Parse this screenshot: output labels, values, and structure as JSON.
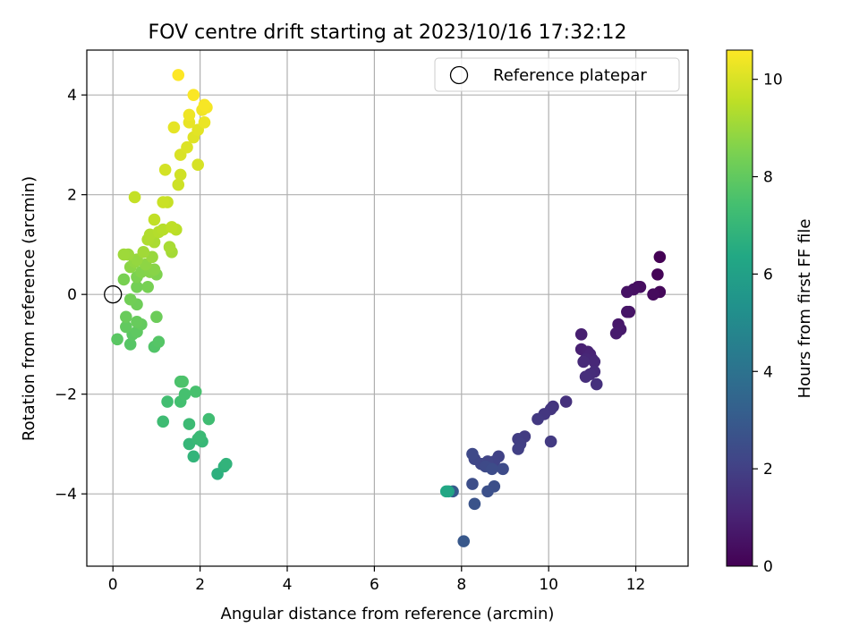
{
  "chart_data": {
    "type": "scatter",
    "title": "FOV centre drift starting at 2023/10/16 17:32:12",
    "xlabel": "Angular distance from reference (arcmin)",
    "ylabel": "Rotation from reference (arcmin)",
    "xlim": [
      -0.6,
      13.2
    ],
    "ylim": [
      -5.45,
      4.9
    ],
    "x_ticks": [
      0,
      2,
      4,
      6,
      8,
      10,
      12
    ],
    "y_ticks": [
      -4,
      -2,
      0,
      2,
      4
    ],
    "grid": true,
    "legend": {
      "position": "top-right",
      "entries": [
        "Reference platepar"
      ]
    },
    "reference_point": {
      "x": 0,
      "y": 0
    },
    "colormap": "viridis",
    "colorbar": {
      "label": "Hours from first FF file",
      "range": [
        0,
        10.6
      ],
      "ticks": [
        0,
        2,
        4,
        6,
        8,
        10
      ]
    },
    "series": [
      {
        "points": [
          {
            "x": 12.55,
            "y": 0.75,
            "c": 0.0
          },
          {
            "x": 12.5,
            "y": 0.4,
            "c": 0.1
          },
          {
            "x": 12.55,
            "y": 0.05,
            "c": 0.2
          },
          {
            "x": 12.4,
            "y": 0.0,
            "c": 0.3
          },
          {
            "x": 12.05,
            "y": 0.15,
            "c": 0.35
          },
          {
            "x": 12.1,
            "y": 0.15,
            "c": 0.4
          },
          {
            "x": 11.95,
            "y": 0.1,
            "c": 0.45
          },
          {
            "x": 11.8,
            "y": 0.05,
            "c": 0.5
          },
          {
            "x": 11.85,
            "y": -0.35,
            "c": 0.55
          },
          {
            "x": 11.8,
            "y": -0.35,
            "c": 0.6
          },
          {
            "x": 11.6,
            "y": -0.6,
            "c": 0.7
          },
          {
            "x": 11.65,
            "y": -0.7,
            "c": 0.75
          },
          {
            "x": 11.55,
            "y": -0.78,
            "c": 0.8
          },
          {
            "x": 10.75,
            "y": -0.8,
            "c": 0.9
          },
          {
            "x": 10.75,
            "y": -1.1,
            "c": 0.95
          },
          {
            "x": 10.9,
            "y": -1.15,
            "c": 1.0
          },
          {
            "x": 10.95,
            "y": -1.2,
            "c": 1.05
          },
          {
            "x": 11.0,
            "y": -1.3,
            "c": 1.1
          },
          {
            "x": 10.85,
            "y": -1.3,
            "c": 1.15
          },
          {
            "x": 11.05,
            "y": -1.35,
            "c": 1.2
          },
          {
            "x": 10.8,
            "y": -1.35,
            "c": 1.25
          },
          {
            "x": 11.05,
            "y": -1.55,
            "c": 1.3
          },
          {
            "x": 10.95,
            "y": -1.6,
            "c": 1.35
          },
          {
            "x": 10.85,
            "y": -1.65,
            "c": 1.4
          },
          {
            "x": 11.1,
            "y": -1.8,
            "c": 1.45
          },
          {
            "x": 10.4,
            "y": -2.15,
            "c": 1.5
          },
          {
            "x": 10.1,
            "y": -2.25,
            "c": 1.6
          },
          {
            "x": 10.05,
            "y": -2.3,
            "c": 1.65
          },
          {
            "x": 9.9,
            "y": -2.4,
            "c": 1.7
          },
          {
            "x": 9.75,
            "y": -2.5,
            "c": 1.75
          },
          {
            "x": 10.05,
            "y": -2.95,
            "c": 1.8
          },
          {
            "x": 9.45,
            "y": -2.85,
            "c": 1.85
          },
          {
            "x": 9.3,
            "y": -2.9,
            "c": 1.9
          },
          {
            "x": 9.35,
            "y": -3.0,
            "c": 1.95
          },
          {
            "x": 9.3,
            "y": -3.1,
            "c": 2.0
          },
          {
            "x": 8.85,
            "y": -3.25,
            "c": 2.05
          },
          {
            "x": 8.75,
            "y": -3.35,
            "c": 2.1
          },
          {
            "x": 8.6,
            "y": -3.35,
            "c": 2.15
          },
          {
            "x": 8.45,
            "y": -3.4,
            "c": 2.2
          },
          {
            "x": 8.3,
            "y": -3.3,
            "c": 2.25
          },
          {
            "x": 8.25,
            "y": -3.2,
            "c": 2.3
          },
          {
            "x": 8.55,
            "y": -3.45,
            "c": 2.35
          },
          {
            "x": 8.95,
            "y": -3.5,
            "c": 2.4
          },
          {
            "x": 8.7,
            "y": -3.5,
            "c": 2.45
          },
          {
            "x": 8.25,
            "y": -3.8,
            "c": 2.5
          },
          {
            "x": 8.75,
            "y": -3.85,
            "c": 2.55
          },
          {
            "x": 8.6,
            "y": -3.95,
            "c": 2.6
          },
          {
            "x": 8.3,
            "y": -4.2,
            "c": 2.7
          },
          {
            "x": 8.05,
            "y": -4.95,
            "c": 2.9
          },
          {
            "x": 7.8,
            "y": -3.95,
            "c": 3.0
          },
          {
            "x": 7.7,
            "y": -3.95,
            "c": 6.1
          },
          {
            "x": 7.65,
            "y": -3.95,
            "c": 6.3
          },
          {
            "x": 2.4,
            "y": -3.6,
            "c": 6.7
          },
          {
            "x": 2.55,
            "y": -3.45,
            "c": 6.8
          },
          {
            "x": 2.6,
            "y": -3.4,
            "c": 6.85
          },
          {
            "x": 1.85,
            "y": -3.25,
            "c": 6.9
          },
          {
            "x": 1.75,
            "y": -3.0,
            "c": 7.0
          },
          {
            "x": 2.05,
            "y": -2.95,
            "c": 7.05
          },
          {
            "x": 1.95,
            "y": -2.9,
            "c": 7.1
          },
          {
            "x": 2.0,
            "y": -2.85,
            "c": 7.15
          },
          {
            "x": 1.75,
            "y": -2.6,
            "c": 7.2
          },
          {
            "x": 1.15,
            "y": -2.55,
            "c": 7.25
          },
          {
            "x": 2.2,
            "y": -2.5,
            "c": 7.3
          },
          {
            "x": 1.25,
            "y": -2.15,
            "c": 7.35
          },
          {
            "x": 1.55,
            "y": -2.15,
            "c": 7.4
          },
          {
            "x": 1.65,
            "y": -2.0,
            "c": 7.45
          },
          {
            "x": 1.9,
            "y": -1.95,
            "c": 7.5
          },
          {
            "x": 1.55,
            "y": -1.75,
            "c": 7.55
          },
          {
            "x": 1.6,
            "y": -1.75,
            "c": 7.6
          },
          {
            "x": 0.95,
            "y": -1.05,
            "c": 7.7
          },
          {
            "x": 1.05,
            "y": -0.95,
            "c": 7.75
          },
          {
            "x": 0.4,
            "y": -1.0,
            "c": 7.8
          },
          {
            "x": 0.1,
            "y": -0.9,
            "c": 7.85
          },
          {
            "x": 0.45,
            "y": -0.8,
            "c": 7.9
          },
          {
            "x": 0.55,
            "y": -0.75,
            "c": 7.95
          },
          {
            "x": 0.3,
            "y": -0.65,
            "c": 8.0
          },
          {
            "x": 0.65,
            "y": -0.6,
            "c": 8.05
          },
          {
            "x": 0.55,
            "y": -0.55,
            "c": 8.1
          },
          {
            "x": 0.3,
            "y": -0.45,
            "c": 8.15
          },
          {
            "x": 1.0,
            "y": -0.45,
            "c": 8.2
          },
          {
            "x": 0.55,
            "y": -0.2,
            "c": 8.25
          },
          {
            "x": 0.4,
            "y": -0.1,
            "c": 8.3
          },
          {
            "x": 0.55,
            "y": 0.15,
            "c": 8.35
          },
          {
            "x": 0.8,
            "y": 0.15,
            "c": 8.4
          },
          {
            "x": 0.25,
            "y": 0.3,
            "c": 8.45
          },
          {
            "x": 0.55,
            "y": 0.35,
            "c": 8.5
          },
          {
            "x": 1.0,
            "y": 0.4,
            "c": 8.55
          },
          {
            "x": 0.65,
            "y": 0.45,
            "c": 8.6
          },
          {
            "x": 0.85,
            "y": 0.45,
            "c": 8.65
          },
          {
            "x": 0.95,
            "y": 0.5,
            "c": 8.7
          },
          {
            "x": 0.4,
            "y": 0.55,
            "c": 8.75
          },
          {
            "x": 0.75,
            "y": 0.6,
            "c": 8.8
          },
          {
            "x": 0.5,
            "y": 0.65,
            "c": 8.85
          },
          {
            "x": 0.55,
            "y": 0.7,
            "c": 8.9
          },
          {
            "x": 0.9,
            "y": 0.75,
            "c": 8.95
          },
          {
            "x": 0.35,
            "y": 0.8,
            "c": 9.0
          },
          {
            "x": 0.25,
            "y": 0.8,
            "c": 9.05
          },
          {
            "x": 0.7,
            "y": 0.85,
            "c": 9.1
          },
          {
            "x": 1.35,
            "y": 0.85,
            "c": 9.15
          },
          {
            "x": 1.3,
            "y": 0.95,
            "c": 9.2
          },
          {
            "x": 0.95,
            "y": 1.05,
            "c": 9.25
          },
          {
            "x": 0.8,
            "y": 1.1,
            "c": 9.3
          },
          {
            "x": 0.85,
            "y": 1.2,
            "c": 9.35
          },
          {
            "x": 1.05,
            "y": 1.25,
            "c": 9.4
          },
          {
            "x": 1.15,
            "y": 1.3,
            "c": 9.45
          },
          {
            "x": 1.45,
            "y": 1.3,
            "c": 9.5
          },
          {
            "x": 1.35,
            "y": 1.35,
            "c": 9.55
          },
          {
            "x": 0.95,
            "y": 1.5,
            "c": 9.6
          },
          {
            "x": 0.5,
            "y": 1.95,
            "c": 9.65
          },
          {
            "x": 1.25,
            "y": 1.85,
            "c": 9.7
          },
          {
            "x": 1.15,
            "y": 1.85,
            "c": 9.75
          },
          {
            "x": 1.5,
            "y": 2.2,
            "c": 9.8
          },
          {
            "x": 1.55,
            "y": 2.4,
            "c": 9.85
          },
          {
            "x": 1.2,
            "y": 2.5,
            "c": 9.9
          },
          {
            "x": 1.95,
            "y": 2.6,
            "c": 9.95
          },
          {
            "x": 1.55,
            "y": 2.8,
            "c": 10.0
          },
          {
            "x": 1.7,
            "y": 2.95,
            "c": 10.05
          },
          {
            "x": 1.85,
            "y": 3.15,
            "c": 10.1
          },
          {
            "x": 1.95,
            "y": 3.3,
            "c": 10.15
          },
          {
            "x": 1.4,
            "y": 3.35,
            "c": 10.2
          },
          {
            "x": 1.75,
            "y": 3.45,
            "c": 10.25
          },
          {
            "x": 2.1,
            "y": 3.45,
            "c": 10.3
          },
          {
            "x": 1.75,
            "y": 3.6,
            "c": 10.35
          },
          {
            "x": 2.05,
            "y": 3.7,
            "c": 10.4
          },
          {
            "x": 2.15,
            "y": 3.75,
            "c": 10.45
          },
          {
            "x": 2.1,
            "y": 3.8,
            "c": 10.5
          },
          {
            "x": 1.85,
            "y": 4.0,
            "c": 10.55
          },
          {
            "x": 1.5,
            "y": 4.4,
            "c": 10.6
          }
        ]
      }
    ]
  }
}
